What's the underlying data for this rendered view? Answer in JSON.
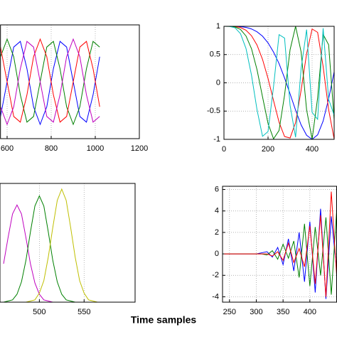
{
  "chart_data": [
    {
      "type": "line",
      "xlim": [
        570,
        1200
      ],
      "ylim": [
        -1,
        1
      ],
      "xticks": [
        600,
        800,
        1000,
        1200
      ],
      "grid": true,
      "x": [
        570,
        600,
        630,
        660,
        690,
        720,
        750,
        780,
        810,
        840,
        870,
        900,
        930,
        960,
        990,
        1020
      ],
      "series": [
        {
          "color": "#0000ff",
          "values": [
            -0.61,
            0,
            0.61,
            0.71,
            0.23,
            -0.44,
            -0.75,
            -0.44,
            0.23,
            0.71,
            0.61,
            0,
            -0.61,
            -0.71,
            -0.23,
            0.44
          ]
        },
        {
          "color": "#008000",
          "values": [
            0.44,
            0.75,
            0.44,
            -0.23,
            -0.71,
            -0.61,
            0,
            0.61,
            0.71,
            0.23,
            -0.44,
            -0.75,
            -0.44,
            0.23,
            0.71,
            0.61
          ]
        },
        {
          "color": "#ff0000",
          "values": [
            0.61,
            0,
            -0.61,
            -0.71,
            -0.23,
            0.44,
            0.75,
            0.44,
            -0.23,
            -0.71,
            -0.61,
            0,
            0.61,
            0.71,
            0.23,
            -0.44
          ]
        },
        {
          "color": "#bf00bf",
          "values": [
            -0.44,
            -0.75,
            -0.44,
            0.23,
            0.71,
            0.61,
            0,
            -0.61,
            -0.71,
            -0.23,
            0.44,
            0.75,
            0.44,
            -0.23,
            -0.71,
            -0.61
          ]
        }
      ]
    },
    {
      "type": "line",
      "xlim": [
        0,
        500
      ],
      "ylim": [
        -1,
        1
      ],
      "xticks": [
        0,
        200,
        400
      ],
      "yticks": [
        -1,
        -0.5,
        0,
        0.5,
        1
      ],
      "grid": true,
      "x": [
        0,
        25,
        50,
        75,
        100,
        125,
        150,
        175,
        200,
        225,
        250,
        275,
        300,
        325,
        350,
        375,
        400,
        425,
        450,
        475,
        500
      ],
      "series": [
        {
          "color": "#0000ff",
          "values": [
            1,
            1,
            0.999,
            0.994,
            0.981,
            0.953,
            0.903,
            0.825,
            0.707,
            0.544,
            0.34,
            0.086,
            -0.195,
            -0.483,
            -0.744,
            -0.928,
            -1,
            -0.92,
            -0.676,
            -0.282,
            0.195
          ]
        },
        {
          "color": "#ff0000",
          "values": [
            1,
            1,
            0.996,
            0.978,
            0.931,
            0.833,
            0.669,
            0.415,
            0.077,
            -0.314,
            -0.697,
            -0.95,
            -0.976,
            -0.703,
            -0.133,
            0.515,
            0.953,
            0.893,
            0.288,
            -0.475,
            -0.996
          ]
        },
        {
          "color": "#008000",
          "values": [
            1,
            0.999,
            0.989,
            0.945,
            0.829,
            0.603,
            0.233,
            -0.248,
            -0.718,
            -0.991,
            -0.843,
            -0.216,
            0.585,
            1,
            0.548,
            -0.477,
            -0.997,
            -0.266,
            0.857,
            0.673,
            -0.651
          ]
        },
        {
          "color": "#00bfbf",
          "values": [
            1,
            0.998,
            0.974,
            0.87,
            0.608,
            0.135,
            -0.476,
            -0.946,
            -0.862,
            -0.066,
            0.853,
            0.792,
            -0.397,
            -0.963,
            0.249,
            0.942,
            -0.522,
            -0.645,
            0.965,
            -0.291,
            -0.573
          ]
        }
      ]
    },
    {
      "type": "line",
      "xlim": [
        456,
        607
      ],
      "ylim": [
        0,
        1.05
      ],
      "xticks": [
        500,
        550
      ],
      "grid": true,
      "xlabel": "Time samples",
      "x": [
        460,
        465,
        470,
        475,
        480,
        485,
        490,
        495,
        500,
        505,
        510,
        515,
        520,
        525,
        530,
        535,
        540,
        545,
        550,
        555,
        560,
        565,
        570,
        575,
        580,
        585,
        590,
        595,
        600
      ],
      "series": [
        {
          "color": "#bf00bf",
          "values": [
            0.34,
            0.57,
            0.78,
            0.86,
            0.78,
            0.57,
            0.34,
            0.17,
            0.07,
            0.02,
            0.01,
            0,
            0,
            0,
            0,
            0,
            0,
            0,
            0,
            0,
            0,
            0,
            0,
            0,
            0,
            0,
            0,
            0,
            0
          ]
        },
        {
          "color": "#008000",
          "values": [
            0,
            0.01,
            0.02,
            0.07,
            0.18,
            0.37,
            0.62,
            0.85,
            0.94,
            0.85,
            0.62,
            0.37,
            0.18,
            0.07,
            0.02,
            0.01,
            0,
            0,
            0,
            0,
            0,
            0,
            0,
            0,
            0,
            0,
            0,
            0,
            0
          ]
        },
        {
          "color": "#bfbf00",
          "values": [
            0,
            0,
            0,
            0,
            0,
            0,
            0.01,
            0.02,
            0.08,
            0.19,
            0.4,
            0.66,
            0.9,
            1.0,
            0.9,
            0.66,
            0.4,
            0.19,
            0.08,
            0.02,
            0.01,
            0,
            0,
            0,
            0,
            0,
            0,
            0,
            0
          ]
        }
      ]
    },
    {
      "type": "line",
      "xlim": [
        237,
        450
      ],
      "ylim": [
        -4.5,
        6.3
      ],
      "xticks": [
        250,
        300,
        350,
        400
      ],
      "yticks": [
        -4,
        -2,
        0,
        2,
        4,
        6
      ],
      "grid": true,
      "x": [
        240,
        250,
        260,
        270,
        280,
        290,
        300,
        310,
        320,
        330,
        340,
        350,
        360,
        370,
        380,
        390,
        400,
        410,
        420,
        430,
        440,
        450
      ],
      "series": [
        {
          "color": "#0000ff",
          "values": [
            0,
            0,
            0,
            0,
            0,
            0,
            0,
            0.1,
            0.2,
            -0.3,
            0.6,
            -1.0,
            1.4,
            -1.6,
            2.0,
            -2.6,
            3.0,
            -3.6,
            4.2,
            -4.2,
            3.5,
            -1.5
          ]
        },
        {
          "color": "#008000",
          "values": [
            0,
            0,
            0,
            0,
            0,
            0,
            0,
            0,
            -0.1,
            0.3,
            -0.5,
            0.9,
            -0.4,
            1.2,
            -2.2,
            2.8,
            -3.0,
            2.5,
            -2.0,
            3.4,
            -3.8,
            4.0
          ]
        },
        {
          "color": "#ff0000",
          "values": [
            0,
            0,
            0,
            0,
            0,
            0,
            0,
            0,
            0,
            -0.2,
            0.2,
            -0.6,
            1.0,
            -0.8,
            0.5,
            -1.2,
            2.6,
            -2.8,
            3.6,
            -4.0,
            5.8,
            -2.0
          ]
        }
      ]
    }
  ]
}
